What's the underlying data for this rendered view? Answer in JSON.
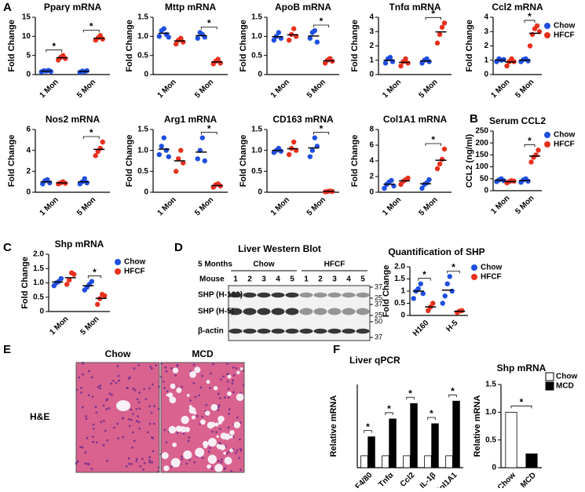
{
  "panel_labels": [
    "A",
    "B",
    "C",
    "D",
    "E",
    "F"
  ],
  "chart_data": [
    {
      "type": "dot",
      "title": "Pparγ mRNA",
      "ylabel": "Fold Change",
      "categories": [
        "1 Mon",
        "5 Mon"
      ],
      "ylim": [
        0,
        15
      ],
      "yticks": [
        0,
        5,
        10,
        15
      ],
      "annotations": [
        "*",
        "*"
      ],
      "series": [
        {
          "color": "#1f4fe0",
          "values": [
            0.9,
            0.8
          ],
          "points": [
            [
              0.7,
              1.0,
              0.9,
              1.1,
              0.8
            ],
            [
              0.6,
              0.9,
              0.8,
              1.0
            ]
          ]
        },
        {
          "color": "#e8301c",
          "values": [
            4.4,
            9.5
          ],
          "points": [
            [
              3.8,
              4.5,
              5.0,
              4.2
            ],
            [
              9.0,
              9.6,
              10.2,
              9.3
            ]
          ]
        }
      ]
    },
    {
      "type": "dot",
      "title": "Mttp mRNA",
      "ylabel": "Fold Change",
      "categories": [
        "1 Mon",
        "5 Mon"
      ],
      "ylim": [
        0,
        1.5
      ],
      "yticks": [
        0,
        0.5,
        {
          "value": 1,
          "label": "1.0"
        },
        {
          "value": 1.5,
          "label": "1.5"
        }
      ],
      "annotations": [
        null,
        "*"
      ],
      "series": [
        {
          "color": "#1f4fe0",
          "values": [
            1.08,
            1.02
          ],
          "points": [
            [
              1.0,
              1.15,
              1.2,
              1.05,
              0.98
            ],
            [
              0.95,
              1.1,
              1.05,
              0.98
            ]
          ]
        },
        {
          "color": "#e8301c",
          "values": [
            0.88,
            0.33
          ],
          "points": [
            [
              0.8,
              0.9,
              0.95,
              0.85
            ],
            [
              0.28,
              0.35,
              0.4,
              0.3
            ]
          ]
        }
      ]
    },
    {
      "type": "dot",
      "title": "ApoB mRNA",
      "ylabel": "Fold Change",
      "categories": [
        "1 Mon",
        "5 Mon"
      ],
      "ylim": [
        0,
        1.5
      ],
      "yticks": [
        0,
        0.5,
        {
          "value": 1,
          "label": "1.0"
        },
        {
          "value": 1.5,
          "label": "1.5"
        }
      ],
      "annotations": [
        null,
        "*"
      ],
      "series": [
        {
          "color": "#1f4fe0",
          "values": [
            0.99,
            1.01
          ],
          "points": [
            [
              0.9,
              1.0,
              1.1,
              0.95
            ],
            [
              0.95,
              1.1,
              1.15,
              0.85
            ]
          ]
        },
        {
          "color": "#e8301c",
          "values": [
            1.04,
            0.36
          ],
          "points": [
            [
              0.9,
              1.05,
              1.2,
              1.0
            ],
            [
              0.3,
              0.38,
              0.42,
              0.35
            ]
          ]
        }
      ]
    },
    {
      "type": "dot",
      "title": "Tnfα mRNA",
      "ylabel": "Fold Change",
      "categories": [
        "1 Mon",
        "5 Mon"
      ],
      "ylim": [
        0,
        4
      ],
      "yticks": [
        0,
        1,
        2,
        3,
        4
      ],
      "annotations": [
        null,
        "*"
      ],
      "series": [
        {
          "color": "#1f4fe0",
          "values": [
            1.0,
            0.95
          ],
          "points": [
            [
              0.8,
              1.1,
              1.2,
              0.9
            ],
            [
              0.8,
              1.0,
              1.1,
              0.9
            ]
          ]
        },
        {
          "color": "#e8301c",
          "values": [
            0.85,
            2.98
          ],
          "points": [
            [
              0.6,
              0.9,
              1.1,
              0.8
            ],
            [
              2.2,
              2.8,
              3.3,
              3.6
            ]
          ]
        }
      ]
    },
    {
      "type": "dot",
      "title": "Ccl2 mRNA",
      "ylabel": "Fold Change",
      "categories": [
        "1 Mon",
        "5 Mon"
      ],
      "ylim": [
        0,
        4
      ],
      "yticks": [
        0,
        1,
        2,
        3,
        4
      ],
      "annotations": [
        null,
        "*"
      ],
      "legend": true,
      "series": [
        {
          "name": "Chow",
          "color": "#1f4fe0",
          "values": [
            1.01,
            1.0
          ],
          "points": [
            [
              0.9,
              1.1,
              1.0,
              1.05
            ],
            [
              0.9,
              1.05,
              1.1,
              0.95
            ]
          ]
        },
        {
          "name": "HFCF",
          "color": "#e8301c",
          "values": [
            0.88,
            2.88
          ],
          "points": [
            [
              0.6,
              0.9,
              1.1,
              0.9
            ],
            [
              2.0,
              2.8,
              3.2,
              3.4,
              3.0
            ]
          ]
        }
      ]
    },
    {
      "type": "dot",
      "title": "Nos2 mRNA",
      "ylabel": "Fold Change",
      "categories": [
        "1 Mon",
        "5 Mon"
      ],
      "ylim": [
        0,
        6
      ],
      "yticks": [
        0,
        2,
        4,
        6
      ],
      "annotations": [
        null,
        "*"
      ],
      "series": [
        {
          "color": "#1f4fe0",
          "values": [
            1.0,
            1.0
          ],
          "points": [
            [
              0.8,
              1.1,
              1.2,
              0.9
            ],
            [
              0.8,
              1.0,
              1.3,
              0.9
            ]
          ]
        },
        {
          "color": "#e8301c",
          "values": [
            0.89,
            4.1
          ],
          "points": [
            [
              0.8,
              0.9,
              1.0,
              0.85
            ],
            [
              3.5,
              3.9,
              4.2,
              4.8
            ]
          ]
        }
      ]
    },
    {
      "type": "dot",
      "title": "Arg1 mRNA",
      "ylabel": "Fold Change",
      "categories": [
        "1 Mon",
        "5 Mon"
      ],
      "ylim": [
        0,
        1.5
      ],
      "yticks": [
        0,
        0.5,
        {
          "value": 1,
          "label": "1.0"
        },
        {
          "value": 1.5,
          "label": "1.5"
        }
      ],
      "annotations": [
        null,
        "*"
      ],
      "series": [
        {
          "color": "#1f4fe0",
          "values": [
            1.03,
            0.96
          ],
          "points": [
            [
              0.9,
              1.1,
              1.3,
              1.0,
              0.85
            ],
            [
              0.8,
              1.0,
              1.3,
              0.75
            ]
          ]
        },
        {
          "color": "#e8301c",
          "values": [
            0.75,
            0.16
          ],
          "points": [
            [
              0.5,
              0.8,
              1.0,
              0.7
            ],
            [
              0.12,
              0.18,
              0.2,
              0.15
            ]
          ]
        }
      ]
    },
    {
      "type": "dot",
      "title": "CD163 mRNA",
      "ylabel": "Fold Change",
      "categories": [
        "1 Mon",
        "5 Mon"
      ],
      "ylim": [
        0,
        1.5
      ],
      "yticks": [
        0,
        0.5,
        {
          "value": 1,
          "label": "1.0"
        },
        {
          "value": 1.5,
          "label": "1.5"
        }
      ],
      "annotations": [
        null,
        "*"
      ],
      "series": [
        {
          "color": "#1f4fe0",
          "values": [
            1.0,
            1.06
          ],
          "points": [
            [
              0.95,
              1.0,
              1.05,
              0.98
            ],
            [
              0.85,
              1.0,
              1.3,
              1.1
            ]
          ]
        },
        {
          "color": "#e8301c",
          "values": [
            1.04,
            0.02
          ],
          "points": [
            [
              0.9,
              1.05,
              1.2,
              1.0
            ],
            [
              0.01,
              0.02,
              0.03,
              0.02
            ]
          ]
        }
      ]
    },
    {
      "type": "dot",
      "title": "Col1A1 mRNA",
      "ylabel": "Fold Change",
      "categories": [
        "1 Mon",
        "5 Mon"
      ],
      "ylim": [
        0,
        8
      ],
      "yticks": [
        0,
        2,
        4,
        6,
        8
      ],
      "annotations": [
        null,
        "*"
      ],
      "series": [
        {
          "color": "#1f4fe0",
          "values": [
            1.02,
            1.08
          ],
          "points": [
            [
              0.5,
              1.0,
              1.3,
              1.5,
              0.8
            ],
            [
              0.5,
              1.0,
              1.2,
              1.6
            ]
          ]
        },
        {
          "color": "#e8301c",
          "values": [
            1.45,
            4.08
          ],
          "points": [
            [
              1.0,
              1.4,
              1.6,
              1.8
            ],
            [
              3.0,
              3.6,
              4.2,
              5.5
            ]
          ]
        }
      ]
    },
    {
      "type": "dot",
      "title": "Serum CCL2",
      "ylabel": "CCL2 (ng/ml)",
      "categories": [
        "1 Mon",
        "5 Mon"
      ],
      "ylim": [
        0,
        250
      ],
      "yticks": [
        0,
        50,
        100,
        150,
        200,
        250
      ],
      "annotations": [
        null,
        "*"
      ],
      "legend": true,
      "series": [
        {
          "name": "Chow",
          "color": "#1f4fe0",
          "values": [
            44,
            43
          ],
          "points": [
            [
              38,
              45,
              50,
              42
            ],
            [
              35,
              45,
              50,
              40
            ]
          ]
        },
        {
          "name": "HFCF",
          "color": "#e8301c",
          "values": [
            38,
            145
          ],
          "points": [
            [
              33,
              38,
              42,
              40
            ],
            [
              120,
              140,
              150,
              170
            ]
          ]
        }
      ]
    },
    {
      "type": "dot",
      "title": "Shp mRNA",
      "ylabel": "Fold Change",
      "categories": [
        "1 Mon",
        "5 Mon"
      ],
      "ylim": [
        0,
        2
      ],
      "yticks": [
        0,
        0.5,
        {
          "value": 1,
          "label": "1.0"
        },
        {
          "value": 1.5,
          "label": "1.5"
        },
        {
          "value": 2,
          "label": "2.0"
        }
      ],
      "annotations": [
        null,
        "*"
      ],
      "legend": true,
      "series": [
        {
          "name": "Chow",
          "color": "#1f4fe0",
          "values": [
            1.03,
            0.9
          ],
          "points": [
            [
              0.9,
              1.0,
              1.05,
              1.15
            ],
            [
              0.75,
              0.85,
              0.95,
              1.05
            ]
          ]
        },
        {
          "name": "HFCF",
          "color": "#e8301c",
          "values": [
            1.18,
            0.46
          ],
          "points": [
            [
              0.95,
              1.1,
              1.35,
              1.3
            ],
            [
              0.25,
              0.45,
              0.6,
              0.55
            ]
          ]
        }
      ]
    },
    {
      "type": "dot",
      "title": "Quantification of SHP",
      "ylabel": "Fold Change",
      "categories": [
        "H160",
        "H-5"
      ],
      "ylim": [
        0,
        2
      ],
      "yticks": [
        0,
        0.5,
        1,
        1.5,
        {
          "value": 2,
          "label": "2.0"
        }
      ],
      "annotations": [
        "*",
        "*"
      ],
      "legend": true,
      "series": [
        {
          "name": "Chow",
          "color": "#1f4fe0",
          "values": [
            1.0,
            1.04
          ],
          "points": [
            [
              0.7,
              1.0,
              1.1,
              1.3,
              0.9
            ],
            [
              0.5,
              0.8,
              1.3,
              1.6,
              1.0
            ]
          ]
        },
        {
          "name": "HFCF",
          "color": "#e8301c",
          "values": [
            0.35,
            0.17
          ],
          "points": [
            [
              0.2,
              0.35,
              0.5
            ],
            [
              0.12,
              0.18,
              0.2
            ]
          ]
        }
      ]
    },
    {
      "type": "bar",
      "title": "Liver qPCR",
      "ylabel": "Relative mRNA",
      "categories": [
        "F4/80",
        "Tnfα",
        "Ccl2",
        "IL-1β",
        "Col1A1"
      ],
      "ylim": [
        0,
        7
      ],
      "annotations": [
        "*",
        "*",
        "*",
        "*",
        "*"
      ],
      "legend": true,
      "series": [
        {
          "name": "Chow",
          "color": "#ffffff",
          "values": [
            1,
            1,
            1,
            1,
            1
          ]
        },
        {
          "name": "MCD",
          "color": "#000000",
          "values": [
            2.6,
            4.1,
            5.4,
            3.7,
            5.6
          ]
        }
      ]
    },
    {
      "type": "bar",
      "title": "Shp mRNA",
      "ylabel": "Relative mRNA",
      "categories": [
        "Chow",
        "MCD"
      ],
      "ylim": [
        0,
        1.5
      ],
      "yticks": [
        0,
        0.5,
        {
          "value": 1,
          "label": "1.0"
        },
        {
          "value": 1.5,
          "label": "1.5"
        }
      ],
      "annotation": "*",
      "values": [
        1.0,
        0.25
      ],
      "colors": [
        "#ffffff",
        "#000000"
      ]
    }
  ],
  "western_blot": {
    "title": "Liver Western Blot",
    "period": "5 Months",
    "groups": [
      "Chow",
      "HFCF"
    ],
    "lane_header": "Mouse",
    "lanes": [
      "1",
      "2",
      "3",
      "4",
      "5",
      "1",
      "2",
      "3",
      "4",
      "5"
    ],
    "rows": [
      "SHP (H-160)",
      "SHP (H-5)",
      "β-actin"
    ],
    "markers": [
      "37",
      "25",
      "37",
      "25",
      "50",
      "37"
    ]
  },
  "histology": {
    "stain": "H&E",
    "groups": [
      "Chow",
      "MCD"
    ]
  }
}
